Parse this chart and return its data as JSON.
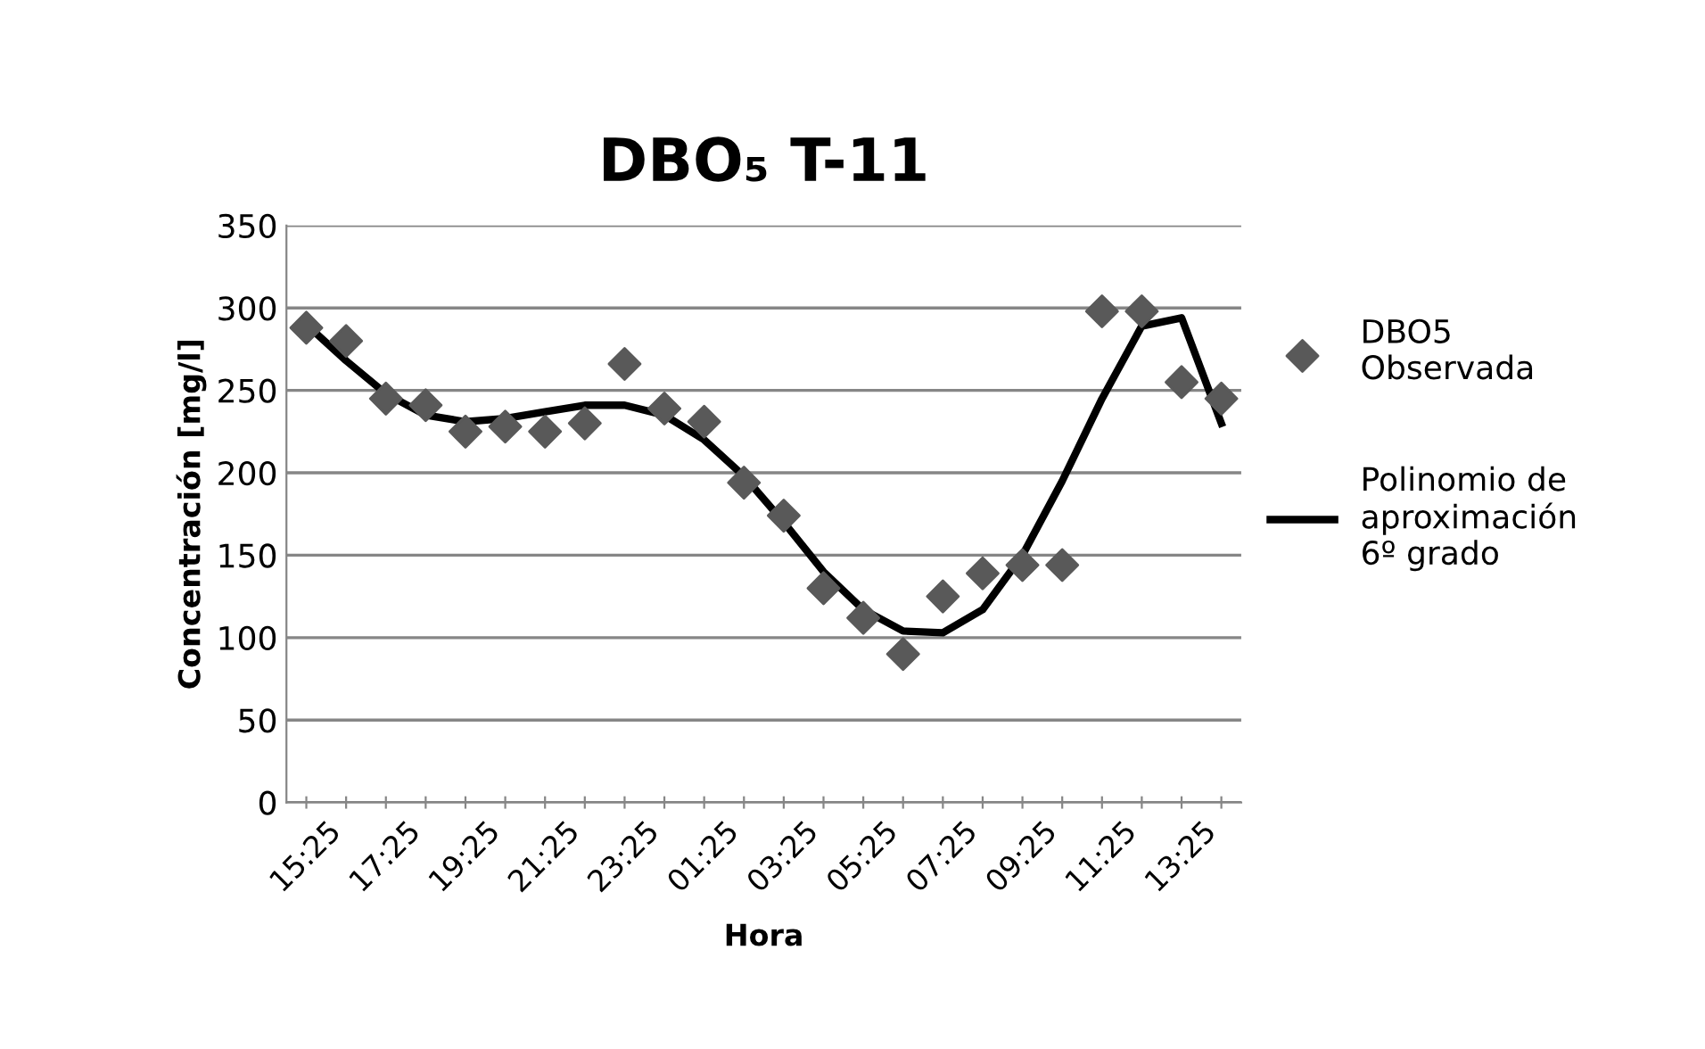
{
  "chart_data": {
    "type": "line",
    "title": "DBO₅ T-11",
    "xlabel": "Hora",
    "ylabel": "Concentración [mg/l]",
    "categories": [
      "15:25",
      null,
      "17:25",
      null,
      "19:25",
      null,
      "21:25",
      null,
      "23:25",
      null,
      "01:25",
      null,
      "03:25",
      null,
      "05:25",
      null,
      "07:25",
      null,
      "09:25",
      null,
      "11:25",
      null,
      "13:25",
      null
    ],
    "ylim": [
      0,
      350
    ],
    "yticks": [
      0,
      50,
      100,
      150,
      200,
      250,
      300,
      350
    ],
    "grid": "y",
    "legend": "right",
    "series": [
      {
        "name": "DBO5 Observada",
        "type": "scatter",
        "marker": "diamond",
        "color": "#595959",
        "values": [
          288,
          280,
          245,
          241,
          225,
          228,
          225,
          230,
          266,
          239,
          231,
          194,
          174,
          130,
          112,
          90,
          125,
          139,
          144,
          144,
          298,
          298,
          255,
          245
        ]
      },
      {
        "name": "Polinomio de aproximación 6º grado",
        "marker": "none",
        "line_style": "solid",
        "color": "#000000",
        "values": [
          290,
          268,
          248,
          235,
          231,
          233,
          237,
          241,
          241,
          235,
          220,
          198,
          170,
          140,
          117,
          104,
          103,
          117,
          150,
          195,
          245,
          289,
          294,
          230
        ]
      }
    ]
  }
}
